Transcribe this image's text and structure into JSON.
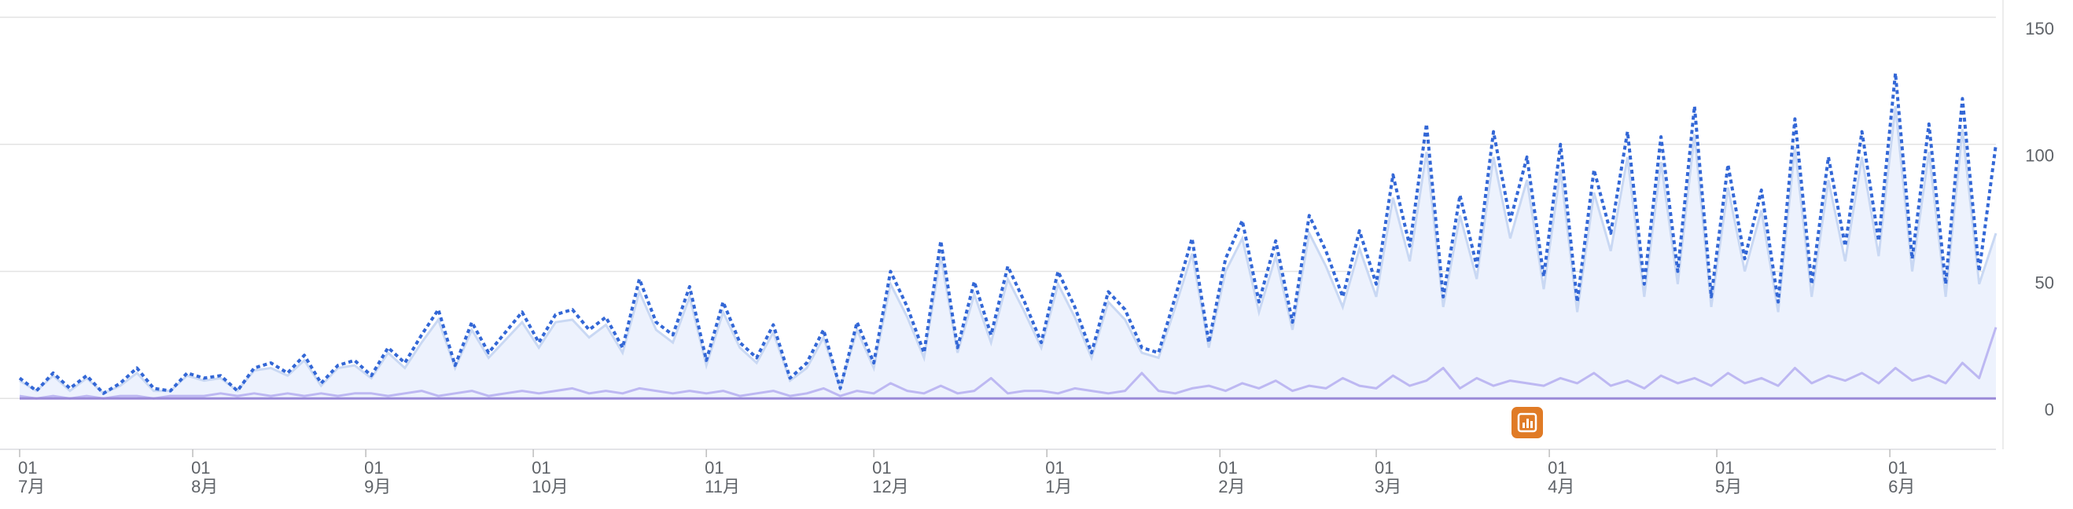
{
  "chart_data": {
    "type": "line",
    "x": [
      0,
      3,
      6,
      9,
      12,
      15,
      18,
      21,
      24,
      27,
      30,
      33,
      36,
      39,
      42,
      45,
      48,
      51,
      54,
      57,
      60,
      63,
      66,
      69,
      72,
      75,
      78,
      81,
      84,
      87,
      90,
      93,
      96,
      99,
      102,
      105,
      108,
      111,
      114,
      117,
      120,
      123,
      126,
      129,
      132,
      135,
      138,
      141,
      144,
      147,
      150,
      153,
      156,
      159,
      162,
      165,
      168,
      171,
      174,
      177,
      180,
      183,
      186,
      189,
      192,
      195,
      198,
      201,
      204,
      207,
      210,
      213,
      216,
      219,
      222,
      225,
      228,
      231,
      234,
      237,
      240,
      243,
      246,
      249,
      252,
      255,
      258,
      261,
      264,
      267,
      270,
      273,
      276,
      279,
      282,
      285,
      288,
      291,
      294,
      297,
      300,
      303,
      306,
      309,
      312,
      315,
      318,
      321,
      324,
      327,
      330,
      333,
      336,
      339,
      342,
      345,
      348,
      351,
      354
    ],
    "series": [
      {
        "color": "#3367d6",
        "style": "dotted",
        "values": [
          8,
          3,
          10,
          4,
          9,
          2,
          6,
          12,
          4,
          3,
          10,
          8,
          9,
          3,
          12,
          14,
          10,
          17,
          6,
          13,
          15,
          9,
          20,
          14,
          25,
          35,
          13,
          30,
          18,
          26,
          34,
          22,
          33,
          35,
          27,
          32,
          20,
          47,
          30,
          25,
          44,
          15,
          38,
          22,
          16,
          29,
          8,
          14,
          27,
          4,
          30,
          14,
          50,
          36,
          18,
          62,
          20,
          46,
          25,
          52,
          38,
          22,
          50,
          36,
          18,
          42,
          35,
          20,
          18,
          40,
          63,
          22,
          55,
          70,
          38,
          62,
          30,
          72,
          58,
          40,
          66,
          45,
          88,
          60,
          108,
          40,
          80,
          52,
          105,
          70,
          95,
          48,
          100,
          38,
          90,
          65,
          105,
          45,
          103,
          50,
          115,
          40,
          92,
          55,
          82,
          38,
          110,
          45,
          95,
          60,
          105,
          62,
          128,
          55,
          108,
          45,
          118,
          50,
          100
        ]
      },
      {
        "color": "#c9d8f3",
        "fill": "#edf2fd",
        "style": "area",
        "values": [
          7,
          3,
          9,
          3,
          8,
          2,
          5,
          10,
          3,
          3,
          9,
          7,
          8,
          3,
          11,
          12,
          9,
          15,
          5,
          12,
          13,
          8,
          18,
          12,
          22,
          31,
          12,
          27,
          16,
          23,
          30,
          20,
          30,
          31,
          24,
          29,
          18,
          42,
          27,
          22,
          40,
          13,
          34,
          20,
          14,
          26,
          7,
          12,
          24,
          4,
          27,
          12,
          45,
          32,
          16,
          56,
          18,
          41,
          22,
          47,
          34,
          20,
          45,
          32,
          16,
          38,
          31,
          18,
          16,
          36,
          57,
          20,
          50,
          63,
          34,
          56,
          27,
          65,
          52,
          36,
          59,
          40,
          79,
          54,
          97,
          36,
          72,
          47,
          95,
          63,
          86,
          43,
          90,
          34,
          81,
          58,
          95,
          40,
          93,
          45,
          104,
          36,
          83,
          50,
          74,
          34,
          99,
          40,
          86,
          54,
          95,
          56,
          115,
          50,
          97,
          40,
          106,
          45,
          65
        ]
      },
      {
        "color": "#bdb8f2",
        "style": "solid",
        "values": [
          1,
          0,
          1,
          0,
          1,
          0,
          1,
          1,
          0,
          1,
          1,
          1,
          2,
          1,
          2,
          1,
          2,
          1,
          2,
          1,
          2,
          2,
          1,
          2,
          3,
          1,
          2,
          3,
          1,
          2,
          3,
          2,
          3,
          4,
          2,
          3,
          2,
          4,
          3,
          2,
          3,
          2,
          3,
          1,
          2,
          3,
          1,
          2,
          4,
          1,
          3,
          2,
          6,
          3,
          2,
          5,
          2,
          3,
          8,
          2,
          3,
          3,
          2,
          4,
          3,
          2,
          3,
          10,
          3,
          2,
          4,
          5,
          3,
          6,
          4,
          7,
          3,
          5,
          4,
          8,
          5,
          4,
          9,
          5,
          7,
          12,
          4,
          8,
          5,
          7,
          6,
          5,
          8,
          6,
          10,
          5,
          7,
          4,
          9,
          6,
          8,
          5,
          10,
          6,
          8,
          5,
          12,
          6,
          9,
          7,
          10,
          6,
          12,
          7,
          9,
          6,
          14,
          8,
          28
        ]
      }
    ],
    "xlim": [
      0,
      354
    ],
    "xticks": [
      {
        "value": 0,
        "label": "01"
      },
      {
        "value": 31,
        "label": "01"
      },
      {
        "value": 62,
        "label": "01"
      },
      {
        "value": 92,
        "label": "01"
      },
      {
        "value": 123,
        "label": "01"
      },
      {
        "value": 153,
        "label": "01"
      },
      {
        "value": 184,
        "label": "01"
      },
      {
        "value": 215,
        "label": "01"
      },
      {
        "value": 243,
        "label": "01"
      },
      {
        "value": 274,
        "label": "01"
      },
      {
        "value": 304,
        "label": "01"
      },
      {
        "value": 335,
        "label": "01"
      }
    ],
    "xtick_months": [
      "7月",
      "8月",
      "9月",
      "10月",
      "11月",
      "12月",
      "1月",
      "2月",
      "3月",
      "4月",
      "5月",
      "6月"
    ],
    "ylim": [
      -20,
      150
    ],
    "yticks": [
      0,
      50,
      100,
      150
    ],
    "grid": true
  }
}
